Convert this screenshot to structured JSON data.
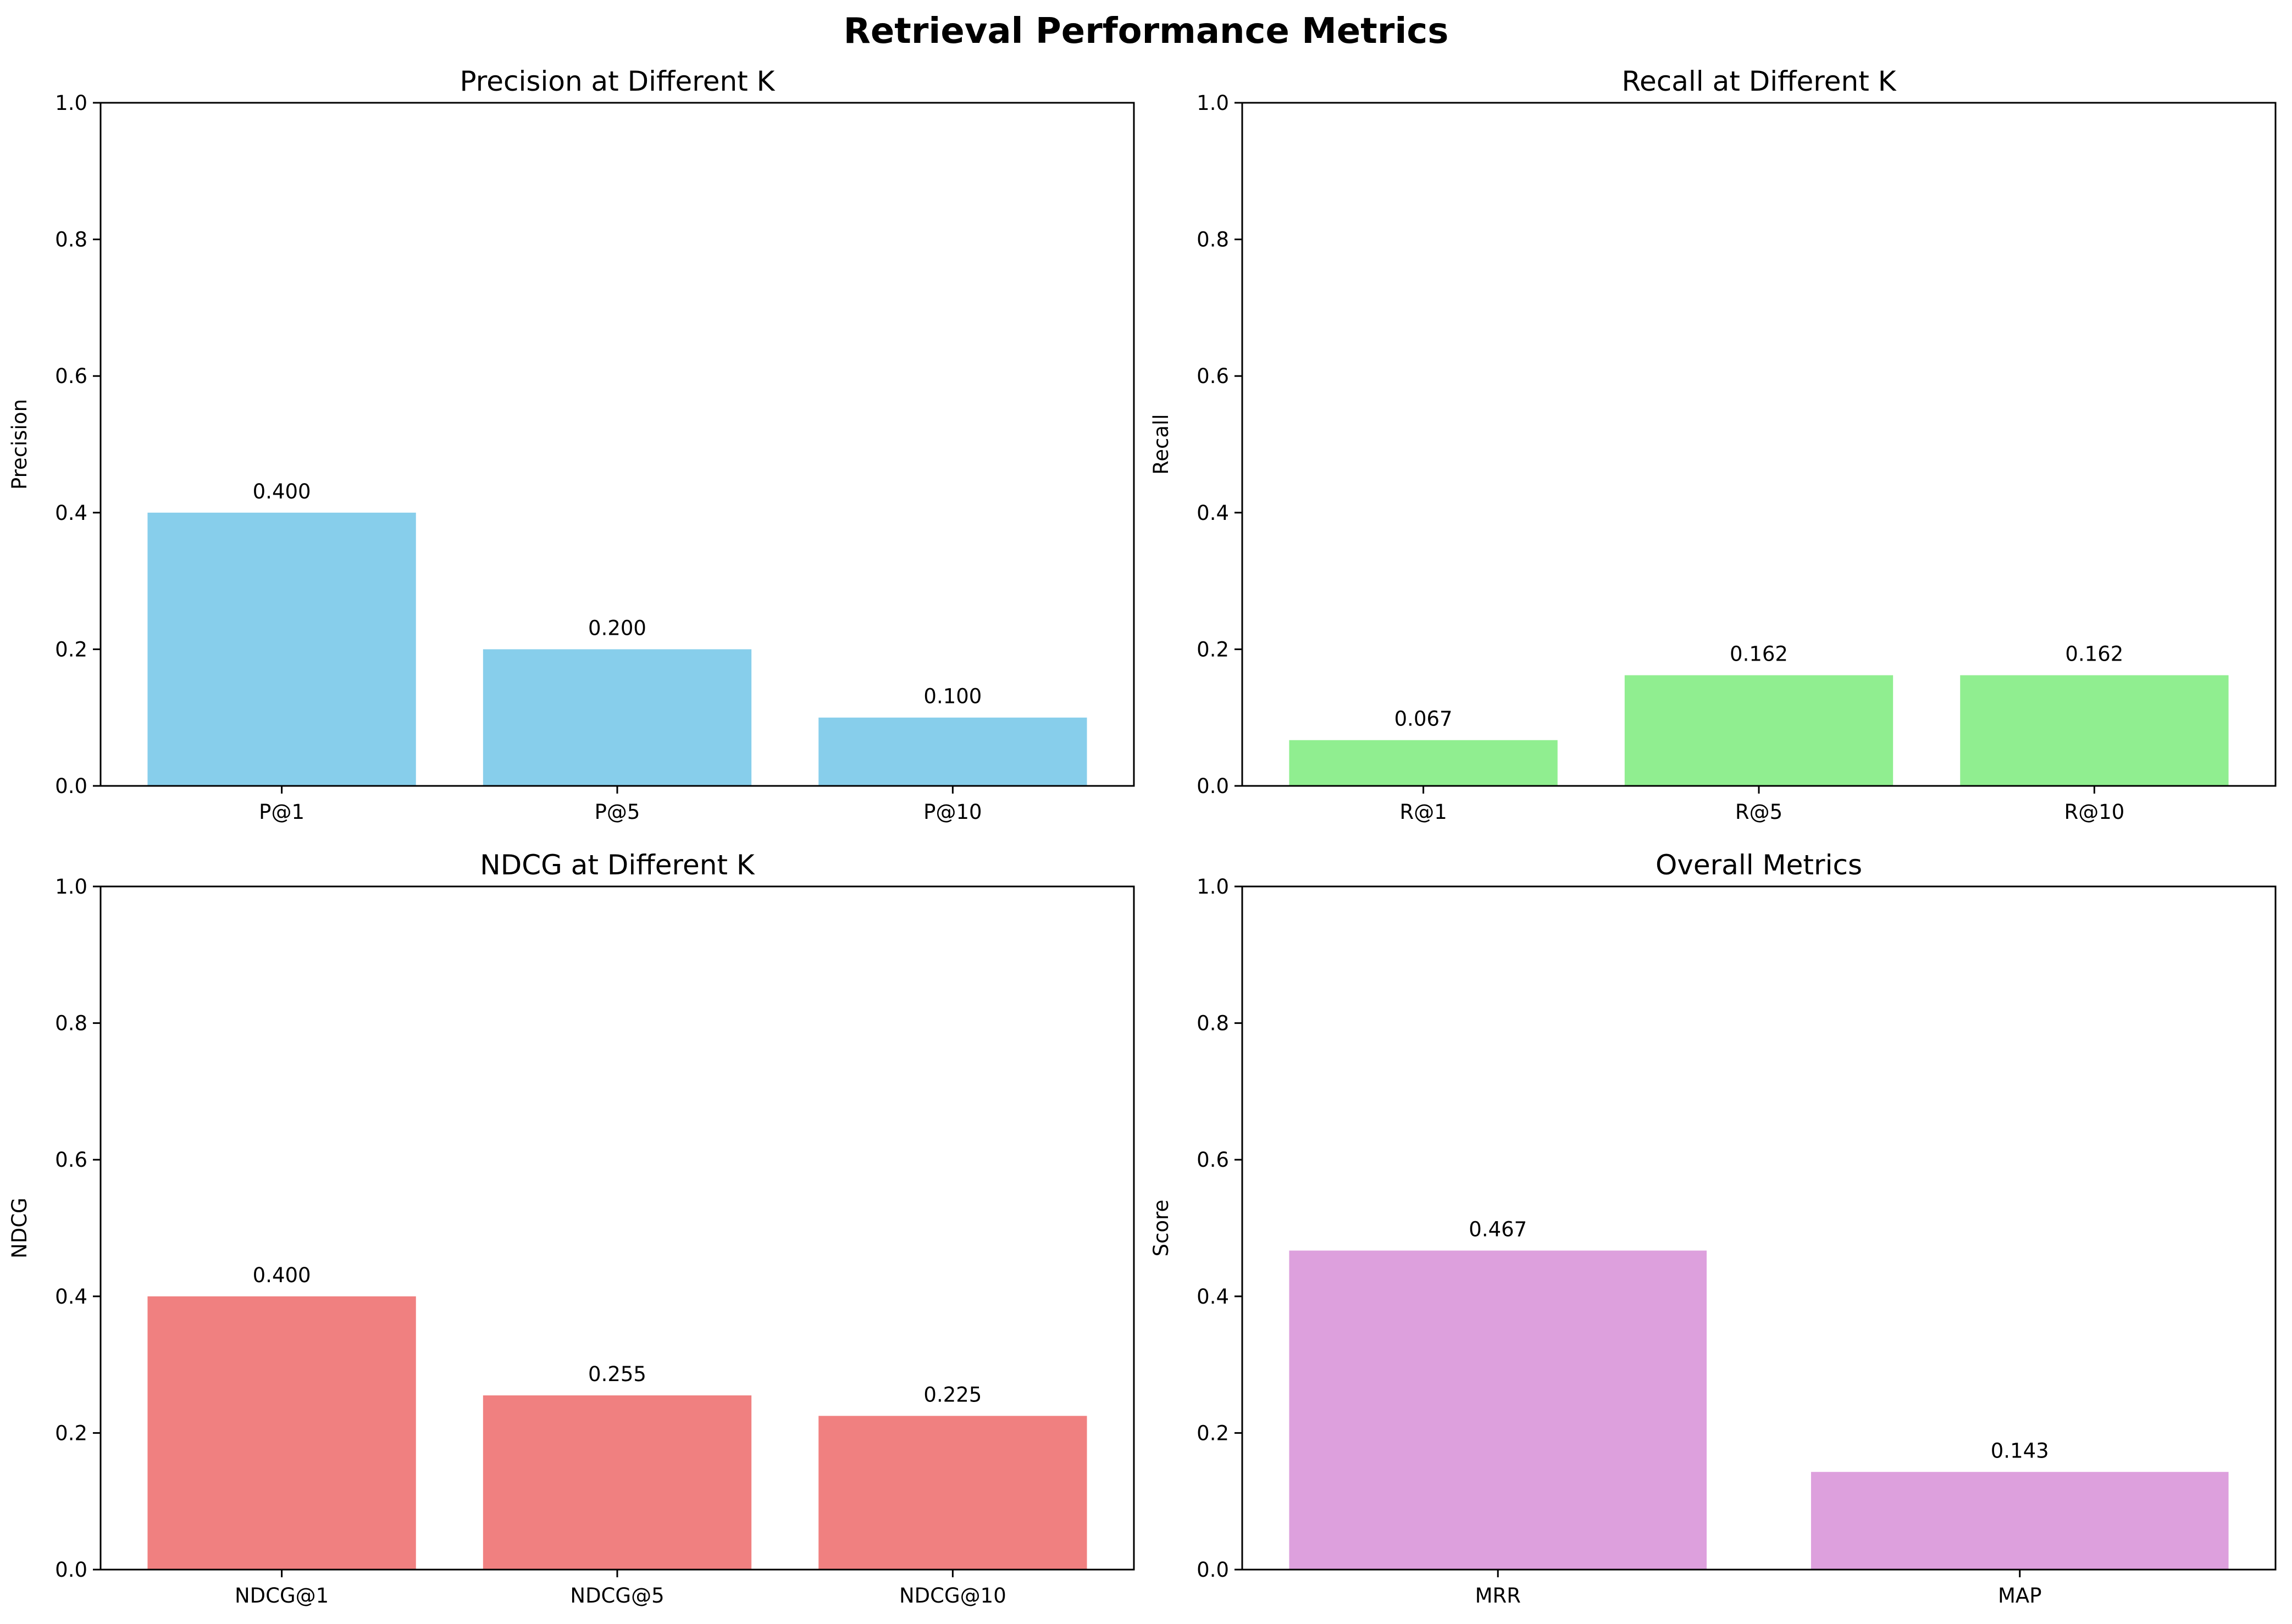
{
  "suptitle": "Retrieval Performance Metrics",
  "chart_data": [
    {
      "type": "bar",
      "title": "Precision at Different K",
      "xlabel": "",
      "ylabel": "Precision",
      "ylim": [
        0,
        1
      ],
      "yticks": [
        "0.0",
        "0.2",
        "0.4",
        "0.6",
        "0.8",
        "1.0"
      ],
      "categories": [
        "P@1",
        "P@5",
        "P@10"
      ],
      "values": [
        0.4,
        0.2,
        0.1
      ],
      "value_labels": [
        "0.400",
        "0.200",
        "0.100"
      ],
      "color": "#87CEEB",
      "grid": false
    },
    {
      "type": "bar",
      "title": "Recall at Different K",
      "xlabel": "",
      "ylabel": "Recall",
      "ylim": [
        0,
        1
      ],
      "yticks": [
        "0.0",
        "0.2",
        "0.4",
        "0.6",
        "0.8",
        "1.0"
      ],
      "categories": [
        "R@1",
        "R@5",
        "R@10"
      ],
      "values": [
        0.067,
        0.162,
        0.162
      ],
      "value_labels": [
        "0.067",
        "0.162",
        "0.162"
      ],
      "color": "#90EE90",
      "grid": false
    },
    {
      "type": "bar",
      "title": "NDCG at Different K",
      "xlabel": "",
      "ylabel": "NDCG",
      "ylim": [
        0,
        1
      ],
      "yticks": [
        "0.0",
        "0.2",
        "0.4",
        "0.6",
        "0.8",
        "1.0"
      ],
      "categories": [
        "NDCG@1",
        "NDCG@5",
        "NDCG@10"
      ],
      "values": [
        0.4,
        0.255,
        0.225
      ],
      "value_labels": [
        "0.400",
        "0.255",
        "0.225"
      ],
      "color": "#F08080",
      "grid": false
    },
    {
      "type": "bar",
      "title": "Overall Metrics",
      "xlabel": "",
      "ylabel": "Score",
      "ylim": [
        0,
        1
      ],
      "yticks": [
        "0.0",
        "0.2",
        "0.4",
        "0.6",
        "0.8",
        "1.0"
      ],
      "categories": [
        "MRR",
        "MAP"
      ],
      "values": [
        0.467,
        0.143
      ],
      "value_labels": [
        "0.467",
        "0.143"
      ],
      "color": "#DDA0DD",
      "grid": false
    }
  ]
}
